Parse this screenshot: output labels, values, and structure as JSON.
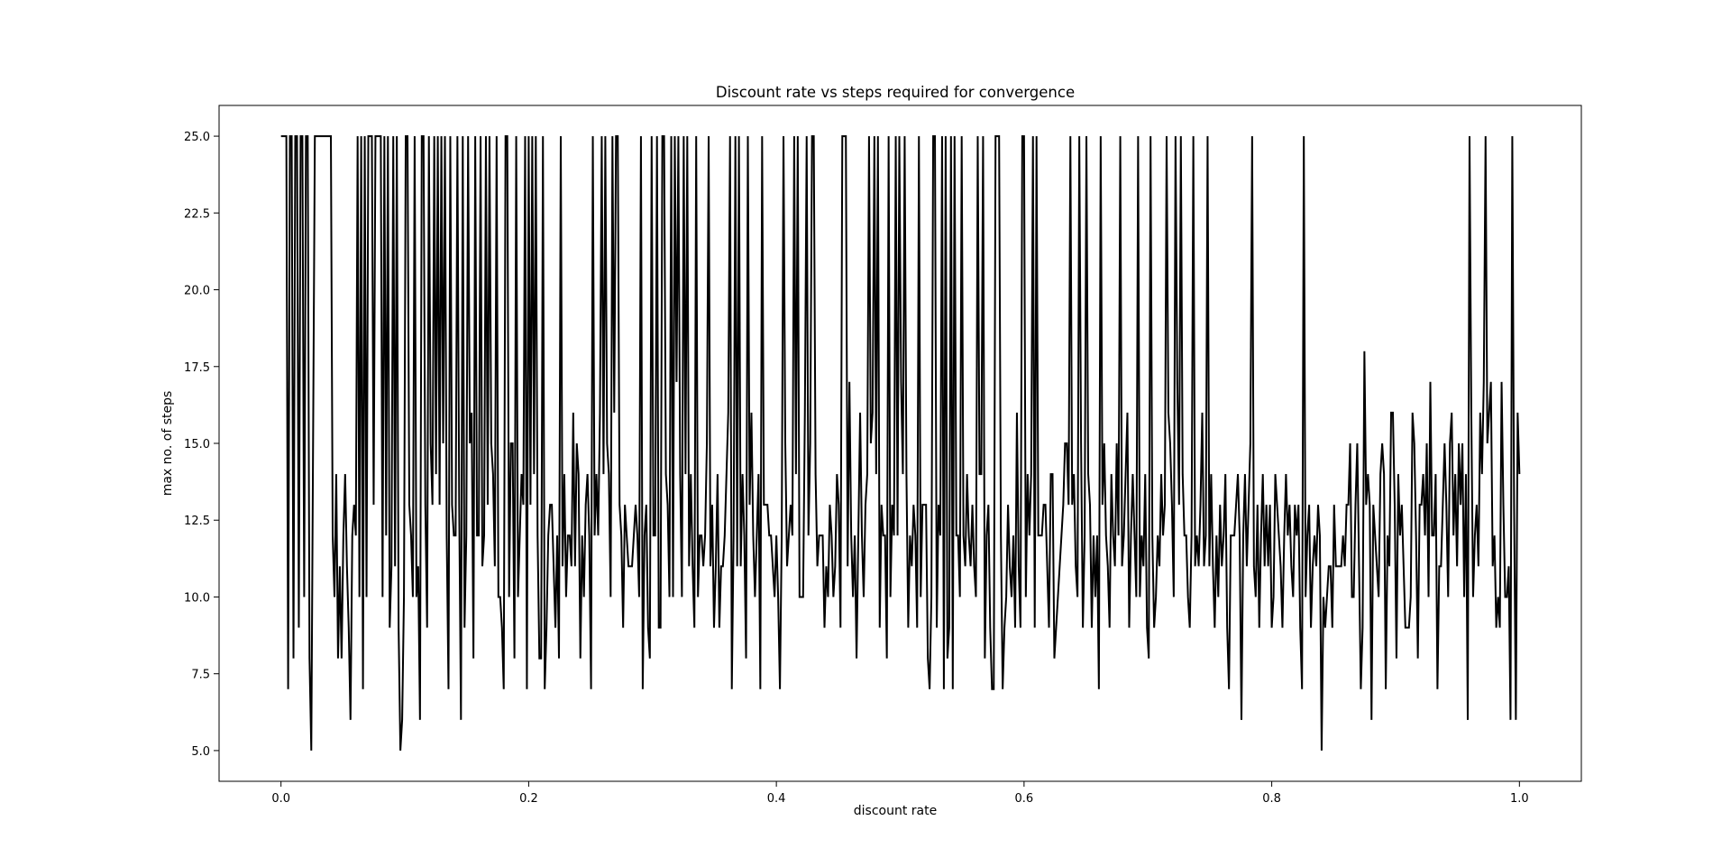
{
  "chart_data": {
    "type": "line",
    "title": "Discount rate vs  steps required for convergence",
    "xlabel": "discount rate",
    "ylabel": "max no. of steps",
    "xlim": [
      -0.05,
      1.05
    ],
    "ylim": [
      4.0,
      26.0
    ],
    "xticks": [
      "0.0",
      "0.2",
      "0.4",
      "0.6",
      "0.8",
      "1.0"
    ],
    "yticks": [
      "5.0",
      "7.5",
      "10.0",
      "12.5",
      "15.0",
      "17.5",
      "20.0",
      "22.5",
      "25.0"
    ],
    "grid": false,
    "line_color": "#000000",
    "x_start": 0.0,
    "x_end": 1.0,
    "series": [
      {
        "values": [
          25,
          25,
          25,
          25,
          7,
          25,
          25,
          8,
          25,
          25,
          9,
          25,
          25,
          10,
          25,
          25,
          8,
          5,
          15,
          25,
          25,
          25,
          25,
          25,
          25,
          25,
          25,
          25,
          25,
          12,
          10,
          14,
          8,
          11,
          8,
          12,
          14,
          11,
          9,
          6,
          12,
          13,
          12,
          25,
          10,
          25,
          7,
          25,
          10,
          25,
          25,
          25,
          13,
          25,
          25,
          25,
          25,
          10,
          25,
          12,
          25,
          9,
          11,
          25,
          11,
          25,
          9,
          5,
          6,
          10,
          25,
          25,
          13,
          12,
          10,
          25,
          10,
          11,
          6,
          25,
          25,
          13,
          9,
          25,
          15,
          13,
          25,
          14,
          25,
          13,
          25,
          15,
          25,
          12,
          7,
          25,
          13,
          12,
          12,
          25,
          13,
          6,
          25,
          9,
          12,
          25,
          15,
          16,
          8,
          25,
          12,
          12,
          25,
          11,
          12,
          25,
          13,
          25,
          15,
          14,
          11,
          25,
          10,
          10,
          9,
          7,
          25,
          25,
          10,
          15,
          15,
          8,
          25,
          10,
          12,
          14,
          13,
          25,
          7,
          25,
          13,
          25,
          14,
          25,
          12,
          8,
          8,
          25,
          7,
          9,
          12,
          13,
          13,
          11,
          9,
          12,
          8,
          25,
          11,
          14,
          10,
          12,
          12,
          11,
          16,
          11,
          15,
          14,
          8,
          12,
          10,
          13,
          14,
          12,
          7,
          25,
          12,
          14,
          12,
          16,
          25,
          14,
          25,
          15,
          14,
          10,
          25,
          16,
          25,
          25,
          13,
          12,
          9,
          13,
          12,
          11,
          11,
          11,
          12,
          13,
          12,
          10,
          25,
          7,
          12,
          13,
          9,
          8,
          25,
          12,
          12,
          25,
          9,
          9,
          25,
          25,
          14,
          13,
          10,
          25,
          10,
          25,
          17,
          25,
          14,
          10,
          25,
          14,
          25,
          11,
          14,
          11,
          9,
          25,
          10,
          12,
          12,
          11,
          12,
          15,
          25,
          11,
          13,
          9,
          11,
          14,
          9,
          11,
          11,
          12,
          14,
          16,
          25,
          7,
          12,
          25,
          11,
          25,
          11,
          14,
          12,
          8,
          25,
          13,
          16,
          12,
          10,
          12,
          14,
          7,
          25,
          13,
          13,
          13,
          12,
          12,
          11,
          10,
          12,
          10,
          7,
          12,
          25,
          15,
          11,
          12,
          13,
          12,
          25,
          14,
          25,
          10,
          10,
          10,
          16,
          25,
          12,
          15,
          25,
          25,
          14,
          11,
          12,
          12,
          12,
          9,
          11,
          10,
          13,
          12,
          10,
          11,
          14,
          13,
          9,
          25,
          25,
          25,
          11,
          17,
          12,
          10,
          12,
          8,
          12,
          16,
          12,
          10,
          13,
          14,
          25,
          15,
          16,
          25,
          14,
          25,
          9,
          13,
          12,
          12,
          8,
          25,
          10,
          13,
          12,
          25,
          12,
          25,
          17,
          14,
          25,
          14,
          9,
          12,
          11,
          13,
          12,
          9,
          25,
          10,
          13,
          13,
          13,
          8,
          7,
          10,
          25,
          25,
          9,
          13,
          12,
          25,
          7,
          25,
          8,
          9,
          25,
          7,
          25,
          12,
          12,
          10,
          25,
          12,
          11,
          14,
          12,
          11,
          13,
          11,
          10,
          25,
          14,
          14,
          25,
          8,
          12,
          13,
          9,
          7,
          7,
          25,
          25,
          25,
          12,
          7,
          9,
          10,
          13,
          11,
          10,
          12,
          9,
          16,
          11,
          9,
          25,
          25,
          10,
          14,
          12,
          14,
          25,
          9,
          25,
          12,
          12,
          12,
          13,
          13,
          11,
          9,
          14,
          14,
          8,
          9,
          10,
          11,
          12,
          13,
          15,
          15,
          13,
          25,
          13,
          14,
          11,
          10,
          25,
          15,
          9,
          12,
          25,
          14,
          13,
          9,
          12,
          10,
          12,
          7,
          25,
          13,
          15,
          12,
          11,
          9,
          14,
          12,
          11,
          15,
          12,
          25,
          11,
          12,
          14,
          16,
          9,
          12,
          14,
          12,
          10,
          25,
          10,
          12,
          11,
          14,
          9,
          8,
          25,
          12,
          9,
          10,
          12,
          11,
          14,
          12,
          13,
          25,
          16,
          15,
          13,
          10,
          25,
          17,
          13,
          25,
          14,
          12,
          12,
          10,
          9,
          12,
          25,
          11,
          12,
          11,
          13,
          16,
          11,
          12,
          25,
          11,
          14,
          11,
          9,
          12,
          10,
          13,
          11,
          12,
          14,
          9,
          7,
          12,
          12,
          12,
          13,
          14,
          12,
          6,
          12,
          14,
          11,
          13,
          15,
          25,
          11,
          10,
          13,
          9,
          12,
          14,
          11,
          13,
          11,
          13,
          9,
          10,
          14,
          13,
          12,
          11,
          9,
          12,
          14,
          12,
          13,
          11,
          10,
          13,
          12,
          13,
          9,
          7,
          25,
          10,
          12,
          13,
          9,
          11,
          12,
          11,
          13,
          12,
          5,
          10,
          9,
          10,
          11,
          11,
          9,
          13,
          11,
          11,
          11,
          11,
          12,
          11,
          13,
          13,
          15,
          10,
          10,
          13,
          15,
          11,
          7,
          9,
          18,
          13,
          14,
          13,
          6,
          13,
          12,
          11,
          10,
          14,
          15,
          14,
          7,
          12,
          11,
          16,
          16,
          13,
          8,
          14,
          12,
          13,
          11,
          9,
          9,
          9,
          10,
          16,
          15,
          12,
          8,
          13,
          13,
          14,
          12,
          15,
          10,
          17,
          12,
          12,
          14,
          7,
          11,
          11,
          13,
          15,
          13,
          10,
          15,
          16,
          12,
          14,
          11,
          15,
          13,
          15,
          10,
          14,
          6,
          25,
          16,
          10,
          12,
          13,
          11,
          16,
          14,
          17,
          25,
          15,
          16,
          17,
          11,
          12,
          9,
          10,
          9,
          17,
          13,
          10,
          10,
          11,
          6,
          25,
          13,
          6,
          16,
          14
        ]
      }
    ]
  }
}
